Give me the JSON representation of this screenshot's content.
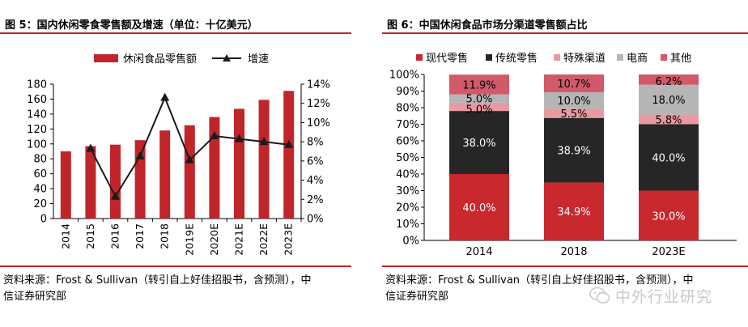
{
  "left": {
    "title": "图 5：国内休闲零食零售额及增速（单位：十亿美元）",
    "source_line1": "资料来源：Frost & Sullivan（转引自上好佳招股书，含预测），中",
    "source_line2": "信证券研究部"
  },
  "right": {
    "title": "图 6：中国休闲食品市场分渠道零售额占比",
    "source_line1": "资料来源：Frost & Sullivan（转引自上好佳招股书，含预测），中",
    "source_line2": "信证券研究部"
  },
  "watermark": "中外行业研究",
  "colors": {
    "accent": "#c0252a",
    "bar": "#c0252a",
    "line": "#1a1a1a",
    "modern": "#c8282e",
    "traditional": "#262626",
    "special": "#e89aa0",
    "ecommerce": "#b5b5b5",
    "other": "#d0596a"
  },
  "chart_data": [
    {
      "type": "bar",
      "title": "国内休闲零食零售额及增速（单位：十亿美元）",
      "categories": [
        "2014",
        "2015",
        "2016",
        "2017",
        "2018",
        "2019E",
        "2020E",
        "2021E",
        "2022E",
        "2023E"
      ],
      "series": [
        {
          "name": "休闲食品零售额",
          "type": "bar",
          "axis": "left",
          "values": [
            90,
            97,
            99,
            105,
            118,
            125,
            136,
            147,
            159,
            171
          ]
        },
        {
          "name": "增速",
          "type": "line",
          "axis": "right",
          "values": [
            null,
            0.073,
            0.023,
            0.065,
            0.126,
            0.061,
            0.086,
            0.083,
            0.08,
            0.077
          ]
        }
      ],
      "ylim": [
        0,
        180
      ],
      "yticks": [
        0,
        20,
        40,
        60,
        80,
        100,
        120,
        140,
        160,
        180
      ],
      "y2lim": [
        0,
        0.14
      ],
      "y2ticks": [
        "0%",
        "2%",
        "4%",
        "6%",
        "8%",
        "10%",
        "12%",
        "14%"
      ],
      "legend": [
        "休闲食品零售额",
        "增速"
      ],
      "legend_position": "top"
    },
    {
      "type": "bar",
      "stacked": true,
      "title": "中国休闲食品市场分渠道零售额占比",
      "categories": [
        "2014",
        "2018",
        "2023E"
      ],
      "series": [
        {
          "name": "现代零售",
          "values": [
            40.0,
            34.9,
            30.0
          ]
        },
        {
          "name": "传统零售",
          "values": [
            38.0,
            38.9,
            40.0
          ]
        },
        {
          "name": "特殊渠道",
          "values": [
            5.0,
            5.5,
            5.8
          ]
        },
        {
          "name": "电商",
          "values": [
            5.0,
            10.0,
            18.0
          ]
        },
        {
          "name": "其他",
          "values": [
            11.9,
            10.7,
            6.2
          ]
        }
      ],
      "data_labels": [
        [
          "40.0%",
          "34.9%",
          "30.0%"
        ],
        [
          "38.0%",
          "38.9%",
          "40.0%"
        ],
        [
          "5.0%",
          "5.5%",
          "5.8%"
        ],
        [
          "5.0%",
          "10.0%",
          "18.0%"
        ],
        [
          "11.9%",
          "10.7%",
          "6.2%"
        ]
      ],
      "ylim": [
        0,
        100
      ],
      "yticks": [
        "0%",
        "10%",
        "20%",
        "30%",
        "40%",
        "50%",
        "60%",
        "70%",
        "80%",
        "90%",
        "100%"
      ],
      "legend": [
        "现代零售",
        "传统零售",
        "特殊渠道",
        "电商",
        "其他"
      ],
      "legend_position": "top"
    }
  ]
}
